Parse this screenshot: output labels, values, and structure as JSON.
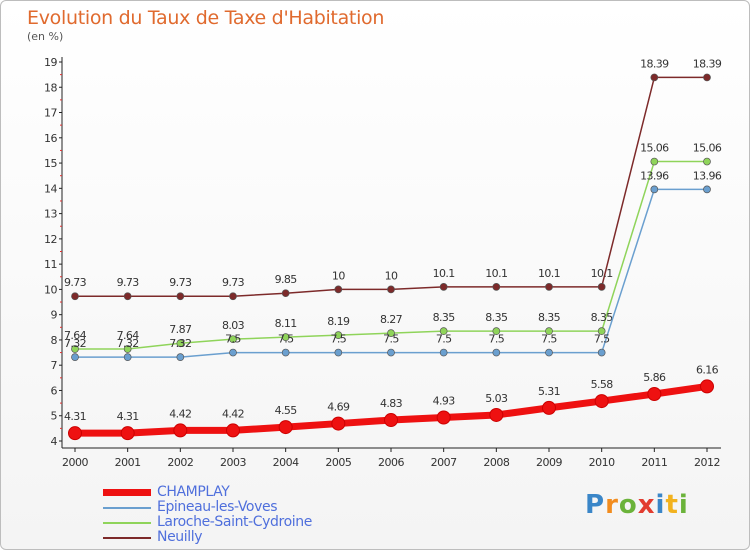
{
  "title": "Evolution du Taux de Taxe d'Habitation",
  "subtitle": "(en %)",
  "logo": {
    "text": "Proxiti",
    "letters": [
      {
        "char": "P",
        "color": "#3a86c8"
      },
      {
        "char": "r",
        "color": "#f28c1e"
      },
      {
        "char": "o",
        "color": "#6bb33a"
      },
      {
        "char": "x",
        "color": "#e23c2f"
      },
      {
        "char": "i",
        "color": "#3a86c8"
      },
      {
        "char": "t",
        "color": "#f2b21e"
      },
      {
        "char": "i",
        "color": "#6bb33a"
      }
    ]
  },
  "chart_data": {
    "type": "line",
    "title": "Evolution du Taux de Taxe d'Habitation",
    "ylabel": "(en %)",
    "xlabel": "",
    "ylim": [
      4,
      19
    ],
    "yticks": [
      "4",
      "5",
      "6",
      "7",
      "8",
      "9",
      "10",
      "11",
      "12",
      "13",
      "14",
      "15",
      "16",
      "17",
      "18",
      "19"
    ],
    "grid": false,
    "legend": "bottom-left",
    "categories": [
      "2000",
      "2001",
      "2002",
      "2003",
      "2004",
      "2005",
      "2006",
      "2007",
      "2008",
      "2009",
      "2010",
      "2011",
      "2012"
    ],
    "series": [
      {
        "name": "CHAMPLAY",
        "color": "#ee1111",
        "values": [
          4.31,
          4.31,
          4.42,
          4.42,
          4.55,
          4.69,
          4.83,
          4.93,
          5.03,
          5.31,
          5.58,
          5.86,
          6.16
        ],
        "labels": [
          "4.31",
          "4.31",
          "4.42",
          "4.42",
          "4.55",
          "4.69",
          "4.83",
          "4.93",
          "5.03",
          "5.31",
          "5.58",
          "5.86",
          "6.16"
        ]
      },
      {
        "name": "Epineau-les-Voves",
        "color": "#6a9fcf",
        "values": [
          7.32,
          7.32,
          7.32,
          7.5,
          7.5,
          7.5,
          7.5,
          7.5,
          7.5,
          7.5,
          7.5,
          13.96,
          13.96
        ],
        "labels": [
          "7.32",
          "7.32",
          "7.32",
          "7.5",
          "7.5",
          "7.5",
          "7.5",
          "7.5",
          "7.5",
          "7.5",
          "7.5",
          "13.96",
          "13.96"
        ]
      },
      {
        "name": "Laroche-Saint-Cydroine",
        "color": "#8fd45a",
        "values": [
          7.64,
          7.64,
          7.87,
          8.03,
          8.11,
          8.19,
          8.27,
          8.35,
          8.35,
          8.35,
          8.35,
          15.06,
          15.06
        ],
        "labels": [
          "7.64",
          "7.64",
          "7.87",
          "8.03",
          "8.11",
          "8.19",
          "8.27",
          "8.35",
          "8.35",
          "8.35",
          "8.35",
          "15.06",
          "15.06"
        ]
      },
      {
        "name": "Neuilly",
        "color": "#7d2a2a",
        "values": [
          9.73,
          9.73,
          9.73,
          9.73,
          9.85,
          10,
          10,
          10.1,
          10.1,
          10.1,
          10.1,
          18.39,
          18.39
        ],
        "labels": [
          "9.73",
          "9.73",
          "9.73",
          "9.73",
          "9.85",
          "10",
          "10",
          "10.1",
          "10.1",
          "10.1",
          "10.1",
          "18.39",
          "18.39"
        ]
      }
    ]
  }
}
